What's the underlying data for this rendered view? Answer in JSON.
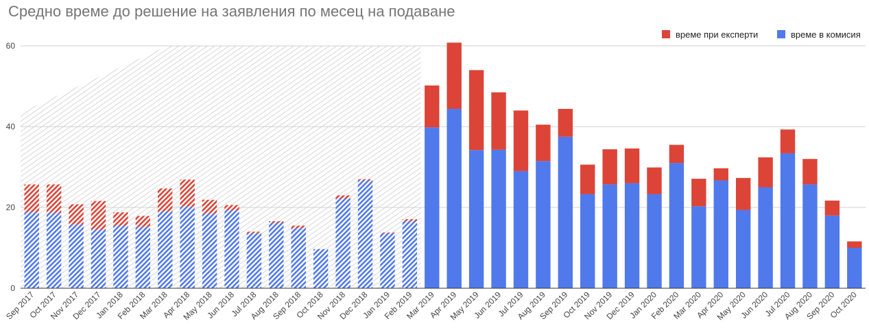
{
  "chart_data": {
    "type": "bar",
    "stacked": true,
    "title": "Средно време до решение на заявления по месец на подаване",
    "xlabel": "",
    "ylabel": "",
    "ylim": [
      0,
      60
    ],
    "yticks": [
      0,
      20,
      40,
      60
    ],
    "grid": true,
    "legend_position": "top-right",
    "hatched_categories_through": "Feb 2019",
    "categories": [
      "Sep 2017",
      "Oct 2017",
      "Nov 2017",
      "Dec 2017",
      "Jan 2018",
      "Feb 2018",
      "Mar 2018",
      "Apr 2018",
      "May 2018",
      "Jun 2018",
      "Jul 2018",
      "Aug 2018",
      "Sep 2018",
      "Oct 2018",
      "Nov 2018",
      "Dec 2018",
      "Jan 2019",
      "Feb 2019",
      "Mar 2019",
      "Apr 2019",
      "May 2019",
      "Jun 2019",
      "Jul 2019",
      "Aug 2019",
      "Sep 2019",
      "Oct 2019",
      "Nov 2019",
      "Dec 2019",
      "Jan 2020",
      "Feb 2020",
      "Mar 2020",
      "Apr 2020",
      "May 2020",
      "Jun 2020",
      "Jul 2020",
      "Aug 2020",
      "Sep 2020",
      "Oct 2020"
    ],
    "series": [
      {
        "name": "време в комисия",
        "color": "#5079eb",
        "values": [
          18.8,
          18.7,
          15.8,
          14.5,
          15.5,
          15.2,
          19.0,
          20.2,
          18.5,
          19.3,
          13.6,
          16.2,
          14.9,
          9.7,
          22.2,
          26.7,
          13.6,
          16.6,
          39.8,
          44.4,
          34.2,
          34.3,
          29.0,
          31.5,
          37.5,
          23.3,
          25.7,
          26.0,
          23.3,
          31.0,
          20.3,
          26.7,
          19.4,
          25.0,
          33.4,
          25.7,
          18.0,
          10.0
        ]
      },
      {
        "name": "време при експерти",
        "color": "#dc4437",
        "values": [
          6.9,
          7.0,
          5.0,
          7.1,
          3.3,
          2.7,
          5.7,
          6.7,
          3.4,
          1.3,
          0.4,
          0.4,
          0.6,
          0.0,
          0.8,
          0.3,
          0.2,
          0.5,
          10.4,
          16.4,
          19.8,
          14.2,
          15.0,
          9.0,
          6.9,
          7.3,
          8.7,
          8.6,
          6.6,
          4.5,
          6.8,
          3.0,
          7.9,
          7.4,
          5.9,
          6.3,
          3.7,
          1.6
        ]
      }
    ]
  }
}
